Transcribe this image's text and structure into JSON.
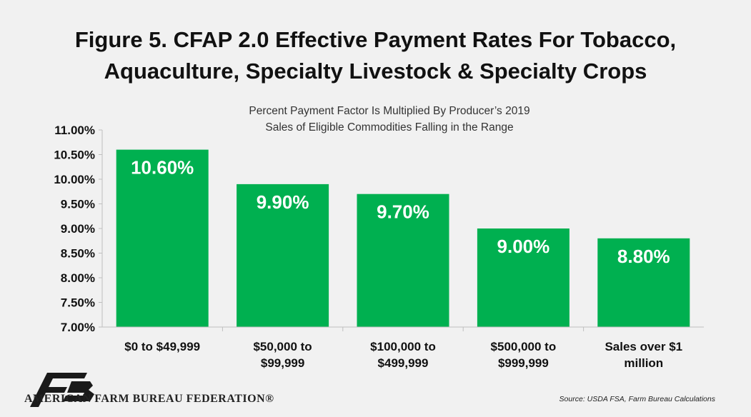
{
  "chart_data": {
    "type": "bar",
    "title": [
      "Figure 5. CFAP 2.0 Effective Payment Rates For Tobacco,",
      "Aquaculture, Specialty Livestock & Specialty Crops"
    ],
    "subtitle": [
      "Percent Payment Factor Is Multiplied By Producer’s 2019",
      "Sales of Eligible Commodities Falling in the Range"
    ],
    "categories": [
      [
        "$0 to $49,999"
      ],
      [
        "$50,000 to",
        "$99,999"
      ],
      [
        "$100,000 to",
        "$499,999"
      ],
      [
        "$500,000 to",
        "$999,999"
      ],
      [
        "Sales over $1",
        "million"
      ]
    ],
    "values": [
      10.6,
      9.9,
      9.7,
      9.0,
      8.8
    ],
    "data_labels": [
      "10.60%",
      "9.90%",
      "9.70%",
      "9.00%",
      "8.80%"
    ],
    "ylim": [
      7.0,
      11.0
    ],
    "yticks": [
      7.0,
      7.5,
      8.0,
      8.5,
      9.0,
      9.5,
      10.0,
      10.5,
      11.0
    ],
    "ytick_labels": [
      "7.00%",
      "7.50%",
      "8.00%",
      "8.50%",
      "9.00%",
      "9.50%",
      "10.00%",
      "10.50%",
      "11.00%"
    ],
    "bar_color": "#00b050",
    "label_color": "#ffffff",
    "grid": false,
    "xlabel": "",
    "ylabel": ""
  },
  "footer": {
    "org_name": "AMERICAN FARM BUREAU FEDERATION®",
    "source": "Source: USDA FSA, Farm Bureau Calculations"
  },
  "logo": {
    "icon": "fb-logo-icon",
    "color": "#1a1a1a"
  }
}
